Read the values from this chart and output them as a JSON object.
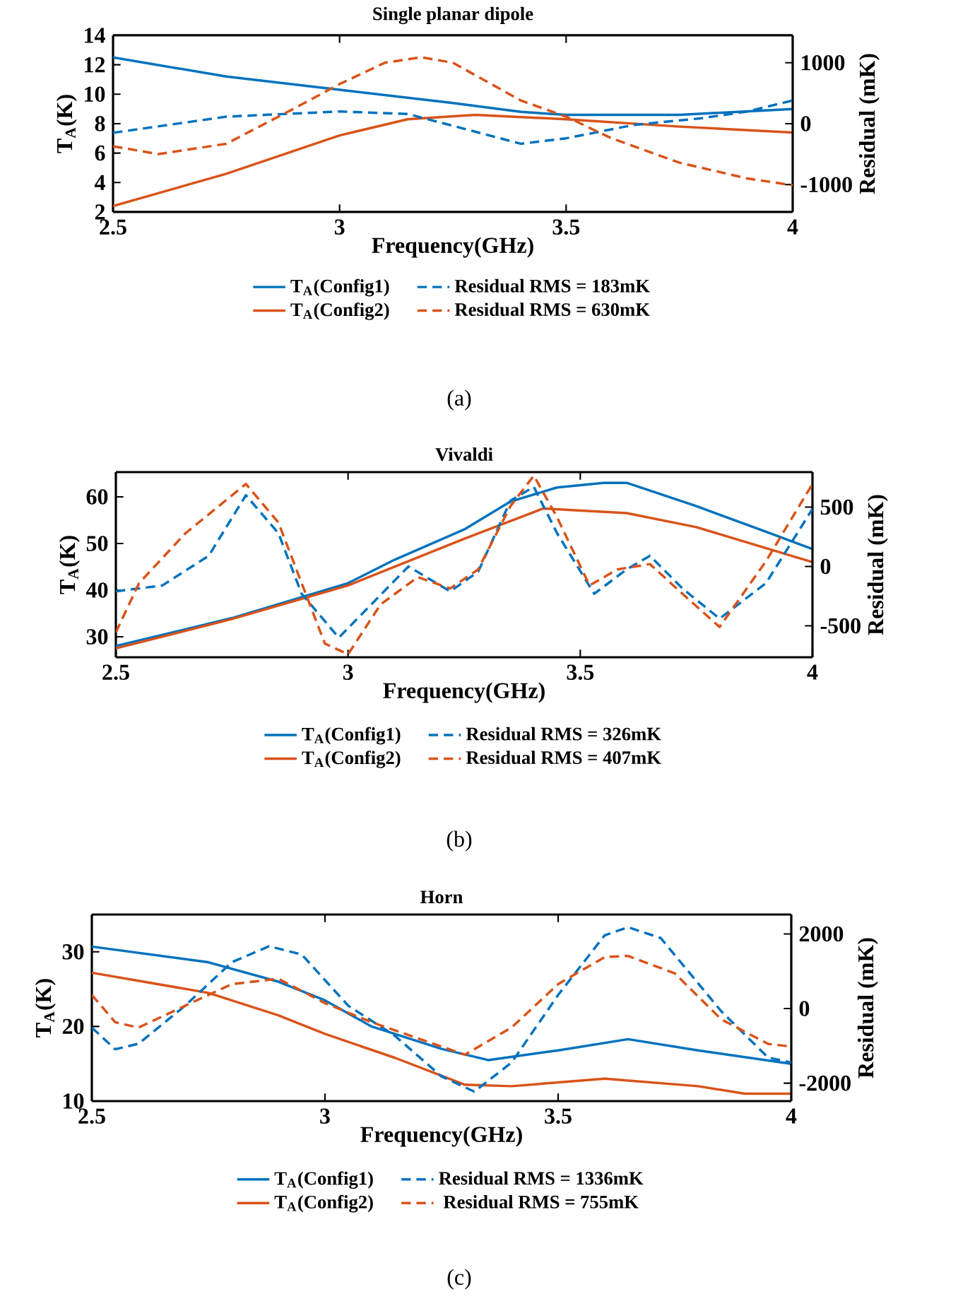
{
  "chart_data": [
    {
      "type": "line",
      "title": "Single planar dipole",
      "xlabel": "Frequency(GHz)",
      "ylabel": "T$_{A}$(K)",
      "y2label": "Residual (mK)",
      "xlim": [
        2.5,
        4
      ],
      "ylim": [
        2,
        14
      ],
      "xticks": [
        2.5,
        3,
        3.5,
        4
      ],
      "yticks": [
        2,
        4,
        6,
        8,
        10,
        12,
        14
      ],
      "y2lim": [
        -1450,
        1450
      ],
      "y2ticks": [
        -1000,
        0,
        1000
      ],
      "legend": "bottom",
      "annotations": [
        "(a)"
      ],
      "series": [
        {
          "name": "T$_{A}$(Config1)",
          "color": "#0072bd",
          "line_style": "solid",
          "x": [
            2.5,
            2.75,
            3.0,
            3.25,
            3.4,
            3.5,
            3.75,
            4.0
          ],
          "values": [
            12.5,
            11.2,
            10.3,
            9.4,
            8.8,
            8.6,
            8.6,
            9.0
          ]
        },
        {
          "name": "T$_{A}$(Config2)",
          "color": "#d95319",
          "line_style": "solid",
          "x": [
            2.5,
            2.75,
            3.0,
            3.15,
            3.3,
            3.5,
            3.75,
            4.0
          ],
          "values": [
            2.4,
            4.6,
            7.2,
            8.3,
            8.6,
            8.3,
            7.8,
            7.4
          ]
        },
        {
          "name": "Residual RMS = 183mK",
          "color": "#0072bd",
          "line_style": "dashed",
          "axis": "y2",
          "x": [
            2.5,
            2.75,
            3.0,
            3.15,
            3.25,
            3.4,
            3.5,
            3.65,
            3.8,
            3.9,
            4.0
          ],
          "values": [
            -150,
            115,
            200,
            160,
            -35,
            -330,
            -240,
            -20,
            90,
            200,
            380
          ]
        },
        {
          "name": "Residual RMS = 630mK",
          "color": "#d95319",
          "line_style": "dashed",
          "axis": "y2",
          "x": [
            2.5,
            2.6,
            2.75,
            2.9,
            3.0,
            3.1,
            3.18,
            3.25,
            3.4,
            3.5,
            3.6,
            3.75,
            3.9,
            4.0
          ],
          "values": [
            -370,
            -500,
            -330,
            250,
            650,
            1000,
            1090,
            1000,
            380,
            115,
            -240,
            -640,
            -900,
            -1010
          ]
        }
      ]
    },
    {
      "type": "line",
      "title": "Vivaldi",
      "xlabel": "Frequency(GHz)",
      "ylabel": "T$_{A}$(K)",
      "y2label": "Residual (mK)",
      "xlim": [
        2.5,
        4
      ],
      "ylim": [
        25.6,
        65.3
      ],
      "xticks": [
        2.5,
        3,
        3.5,
        4
      ],
      "yticks": [
        30,
        40,
        50,
        60
      ],
      "y2lim": [
        -765,
        795
      ],
      "y2ticks": [
        -500,
        0,
        500
      ],
      "legend": "bottom",
      "annotations": [
        "(b)"
      ],
      "series": [
        {
          "name": "T$_{A}$(Config1)",
          "color": "#0072bd",
          "line_style": "solid",
          "x": [
            2.5,
            2.75,
            3.0,
            3.1,
            3.25,
            3.35,
            3.45,
            3.55,
            3.6,
            3.75,
            3.9,
            4.0
          ],
          "values": [
            28,
            34,
            41.5,
            46.5,
            53,
            59,
            62,
            63,
            63,
            58,
            52.5,
            48.8
          ]
        },
        {
          "name": "T$_{A}$(Config2)",
          "color": "#d95319",
          "line_style": "solid",
          "x": [
            2.5,
            2.75,
            3.0,
            3.25,
            3.42,
            3.6,
            3.75,
            3.9,
            4.0
          ],
          "values": [
            27.5,
            33.8,
            41,
            51,
            57.5,
            56.5,
            53.5,
            49,
            46
          ]
        },
        {
          "name": "Residual RMS = 326mK",
          "color": "#0072bd",
          "line_style": "dashed",
          "axis": "y2",
          "x": [
            2.5,
            2.6,
            2.7,
            2.78,
            2.85,
            2.9,
            2.98,
            3.05,
            3.13,
            3.22,
            3.28,
            3.35,
            3.4,
            3.45,
            3.53,
            3.6,
            3.65,
            3.72,
            3.8,
            3.9,
            4.0
          ],
          "values": [
            -210,
            -160,
            90,
            600,
            280,
            -230,
            -600,
            -320,
            0,
            -210,
            -45,
            555,
            670,
            280,
            -230,
            -25,
            90,
            -185,
            -440,
            -140,
            485
          ]
        },
        {
          "name": "Residual RMS = 407mK",
          "color": "#d95319",
          "line_style": "dashed",
          "axis": "y2",
          "x": [
            2.5,
            2.55,
            2.65,
            2.78,
            2.85,
            2.95,
            3.0,
            3.07,
            3.15,
            3.22,
            3.28,
            3.35,
            3.4,
            3.45,
            3.52,
            3.58,
            3.65,
            3.72,
            3.8,
            3.9,
            4.0
          ],
          "values": [
            -555,
            -140,
            280,
            695,
            370,
            -650,
            -740,
            -320,
            -90,
            -185,
            -25,
            510,
            765,
            415,
            -160,
            -25,
            20,
            -230,
            -510,
            45,
            695
          ]
        }
      ]
    },
    {
      "type": "line",
      "title": "Horn",
      "xlabel": "Frequency(GHz)",
      "ylabel": "T$_{A}$(K)",
      "y2label": "Residual (mK)",
      "xlim": [
        2.5,
        4
      ],
      "ylim": [
        10,
        35
      ],
      "xticks": [
        2.5,
        3,
        3.5,
        4
      ],
      "yticks": [
        10,
        20,
        30
      ],
      "y2lim": [
        -2480,
        2520
      ],
      "y2ticks": [
        -2000,
        0,
        2000
      ],
      "legend": "bottom",
      "annotations": [
        "(c)"
      ],
      "series": [
        {
          "name": "T$_{A}$(Config1)",
          "color": "#0072bd",
          "line_style": "solid",
          "x": [
            2.5,
            2.75,
            2.9,
            3.0,
            3.1,
            3.25,
            3.35,
            3.5,
            3.65,
            3.8,
            4.0
          ],
          "values": [
            30.7,
            28.6,
            26,
            23.5,
            20,
            17,
            15.5,
            16.8,
            18.3,
            16.8,
            15
          ]
        },
        {
          "name": "T$_{A}$(Config2)",
          "color": "#d95319",
          "line_style": "solid",
          "x": [
            2.5,
            2.75,
            2.9,
            3.0,
            3.15,
            3.3,
            3.4,
            3.6,
            3.8,
            3.9,
            4.0
          ],
          "values": [
            27.2,
            24.5,
            21.5,
            19,
            15.8,
            12.2,
            12,
            13,
            12,
            11,
            11
          ]
        },
        {
          "name": "Residual RMS = 1336mK",
          "color": "#0072bd",
          "line_style": "dashed",
          "axis": "y2",
          "x": [
            2.5,
            2.55,
            2.6,
            2.7,
            2.8,
            2.88,
            2.95,
            3.05,
            3.15,
            3.25,
            3.32,
            3.4,
            3.5,
            3.6,
            3.65,
            3.72,
            3.85,
            3.95,
            4.0
          ],
          "values": [
            -510,
            -1090,
            -945,
            75,
            1240,
            1670,
            1450,
            75,
            -730,
            -1820,
            -2225,
            -1450,
            365,
            1965,
            2180,
            1890,
            -75,
            -1310,
            -1450
          ]
        },
        {
          "name": "Residual RMS = 755mK",
          "color": "#d95319",
          "line_style": "dashed",
          "axis": "y2",
          "x": [
            2.5,
            2.55,
            2.6,
            2.7,
            2.8,
            2.9,
            3.0,
            3.1,
            3.2,
            3.3,
            3.4,
            3.5,
            3.6,
            3.65,
            3.75,
            3.85,
            3.95,
            4.0
          ],
          "values": [
            365,
            -365,
            -510,
            75,
            655,
            800,
            145,
            -365,
            -800,
            -1235,
            -510,
            655,
            1380,
            1410,
            945,
            -290,
            -945,
            -1020
          ]
        }
      ]
    }
  ]
}
